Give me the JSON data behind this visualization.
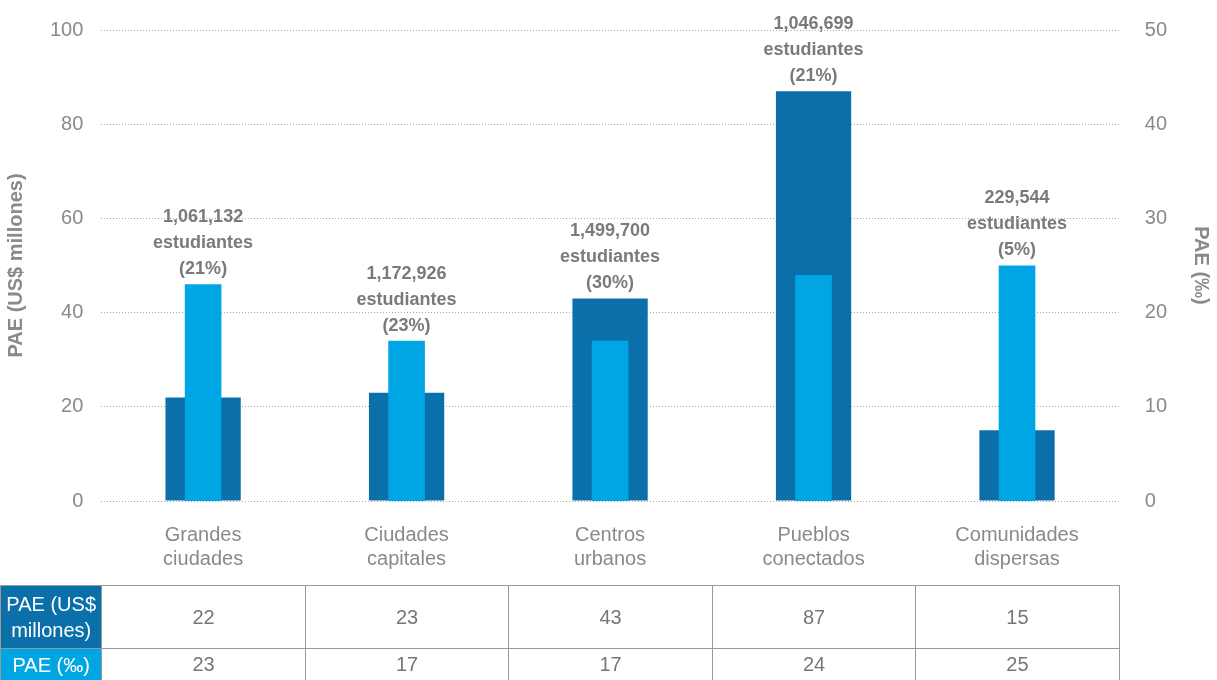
{
  "chart_data": {
    "type": "bar",
    "categories": [
      "Grandes ciudades",
      "Ciudades capitales",
      "Centros urbanos",
      "Pueblos conectados",
      "Comunidades dispersas"
    ],
    "series": [
      {
        "name": "PAE (US$ millones)",
        "color": "#0b6faa",
        "values": [
          22,
          23,
          43,
          87,
          15
        ]
      },
      {
        "name": "PAE (‰)",
        "color": "#00a5e3",
        "values": [
          23,
          17,
          17,
          24,
          25
        ],
        "axis": "y2"
      }
    ],
    "ylabel": "PAE (US$ millones)",
    "y2label": "PAE (‰)",
    "ylim": [
      0,
      100
    ],
    "yticks": [
      0,
      20,
      40,
      60,
      80,
      100
    ],
    "y2lim": [
      0,
      50
    ],
    "y2ticks": [
      0,
      10,
      20,
      30,
      40,
      50
    ],
    "grid": "y",
    "legend": false,
    "data_labels": true,
    "annotations": [
      "1,061,132 estudiantes (21%)",
      "1,172,926 estudiantes (23%)",
      "1,499,700 estudiantes (30%)",
      "1,046,699 estudiantes (21%)",
      "229,544 estudiantes (5%)"
    ]
  }
}
